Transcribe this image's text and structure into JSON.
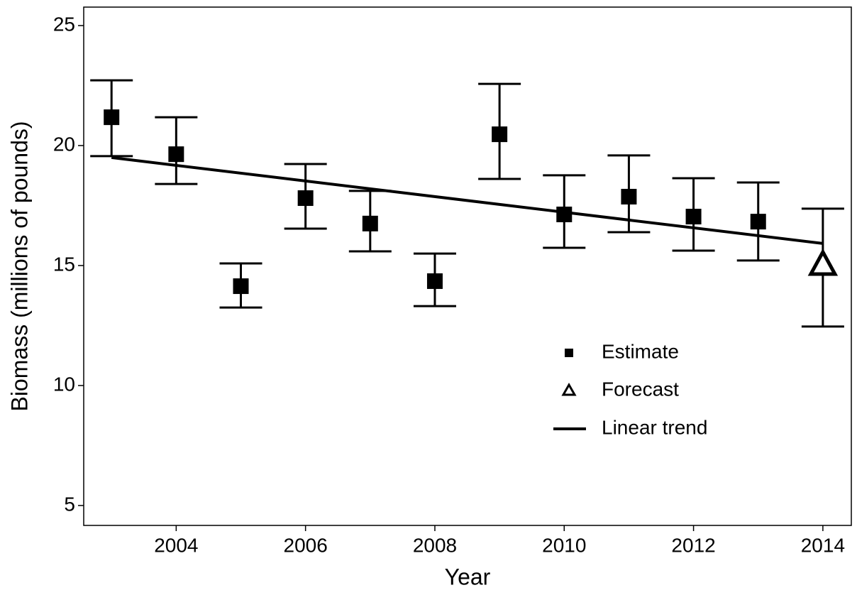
{
  "chart_data": {
    "type": "scatter",
    "x_label": "Year",
    "y_label": "Biomass (millions of pounds)",
    "xlim": [
      2002.57,
      2014.44
    ],
    "xticks": [
      2004,
      2006,
      2008,
      2010,
      2012,
      2014
    ],
    "ylim": [
      4.17,
      25.77
    ],
    "yticks": [
      5,
      10,
      15,
      20,
      25
    ],
    "grid": false,
    "legend_position": "bottom-right",
    "series": [
      {
        "name": "Estimate",
        "color": "#000000",
        "marker": "square",
        "x": [
          2003,
          2004,
          2005,
          2006,
          2007,
          2008,
          2009,
          2010,
          2011,
          2012,
          2013
        ],
        "values": [
          21.18,
          19.64,
          14.14,
          17.81,
          16.75,
          14.35,
          20.47,
          17.13,
          17.87,
          17.04,
          16.83
        ],
        "lower": [
          19.56,
          18.4,
          13.25,
          16.54,
          15.59,
          13.31,
          18.61,
          15.74,
          16.39,
          15.62,
          15.21
        ],
        "upper": [
          22.72,
          21.18,
          15.09,
          19.23,
          18.11,
          15.5,
          22.57,
          18.76,
          19.59,
          18.64,
          18.46
        ]
      },
      {
        "name": "Forecast",
        "color": "#000000",
        "marker": "triangle",
        "x": [
          2014
        ],
        "values": [
          15.03
        ],
        "lower": [
          12.46
        ],
        "upper": [
          17.37
        ]
      },
      {
        "name": "Linear trend",
        "color": "#000000",
        "marker": "line",
        "x": [
          2003,
          2014
        ],
        "values": [
          19.5,
          15.92
        ]
      }
    ]
  }
}
